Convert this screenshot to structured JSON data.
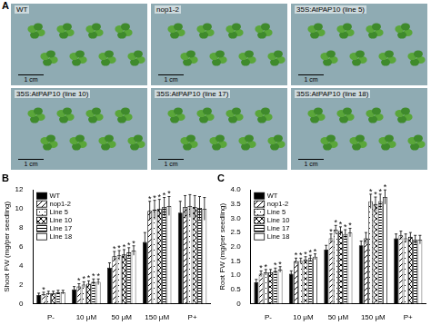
{
  "panel_a": {
    "label": "A",
    "images": [
      {
        "label": "WT",
        "scale_bar": "1 cm"
      },
      {
        "label": "nop1-2",
        "scale_bar": "1 cm"
      },
      {
        "label": "35S:AtPAP10 (line 5)",
        "scale_bar": "1 cm"
      },
      {
        "label": "35S:AtPAP10 (line 10)",
        "scale_bar": "1 cm"
      },
      {
        "label": "35S:AtPAP10 (line 17)",
        "scale_bar": "1 cm"
      },
      {
        "label": "35S:AtPAP10 (line 18)",
        "scale_bar": "1 cm"
      }
    ]
  },
  "chart_data": [
    {
      "type": "bar",
      "title": "B",
      "y_label": "Shoot FW (mg/per seedling)",
      "categories": [
        "P-",
        "10 μM",
        "50 μM",
        "150 μM",
        "P+"
      ],
      "ylim": [
        0,
        12
      ],
      "yticks": [
        0,
        2,
        4,
        6,
        8,
        10,
        12
      ],
      "grid": false,
      "legend": "upper left",
      "series": [
        {
          "name": "WT",
          "color": "#000000",
          "values": [
            0.9,
            1.5,
            3.8,
            6.5,
            9.6
          ],
          "errors": [
            0.2,
            0.3,
            0.5,
            1.0,
            1.2
          ],
          "annotations": [
            null,
            null,
            null,
            null,
            null
          ]
        },
        {
          "name": "nop1-2",
          "color": "#ffffff",
          "values": [
            1.0,
            1.8,
            5.0,
            9.8,
            10.2
          ],
          "errors": [
            0.2,
            0.3,
            0.5,
            1.0,
            1.2
          ],
          "annotations": [
            "*",
            "*",
            "*",
            "*",
            null
          ]
        },
        {
          "name": "Line 5",
          "color": "#ffffff",
          "values": [
            1.1,
            2.0,
            5.1,
            9.9,
            10.3
          ],
          "errors": [
            0.2,
            0.3,
            0.5,
            1.0,
            1.2
          ],
          "annotations": [
            null,
            "*",
            "*",
            "*",
            null
          ]
        },
        {
          "name": "Line 10",
          "color": "#ffffff",
          "values": [
            1.1,
            2.1,
            5.2,
            10.0,
            10.2
          ],
          "errors": [
            0.2,
            0.3,
            0.5,
            1.0,
            1.2
          ],
          "annotations": [
            null,
            "*",
            "*",
            "*",
            null
          ]
        },
        {
          "name": "Line 17",
          "color": "#ffffff",
          "values": [
            1.2,
            2.3,
            5.4,
            10.2,
            10.1
          ],
          "errors": [
            0.2,
            0.3,
            0.5,
            1.0,
            1.2
          ],
          "annotations": [
            null,
            "*",
            "*",
            "*",
            null
          ]
        },
        {
          "name": "Line 18",
          "color": "#ffffff",
          "values": [
            1.2,
            2.3,
            5.6,
            10.3,
            10.0
          ],
          "errors": [
            0.2,
            0.3,
            0.5,
            1.0,
            1.2
          ],
          "annotations": [
            null,
            "*",
            "*",
            "*",
            null
          ]
        }
      ]
    },
    {
      "type": "bar",
      "title": "C",
      "y_label": "Root FW (mg/per seedling)",
      "categories": [
        "P-",
        "10 μM",
        "50 μM",
        "150 μM",
        "P+"
      ],
      "ylim": [
        0,
        4
      ],
      "yticks": [
        0,
        {
          "value": 0.5,
          "label": "0.5"
        },
        {
          "value": 1,
          "label": "1.0"
        },
        {
          "value": 1.5,
          "label": "1.5"
        },
        {
          "value": 2,
          "label": "2.0"
        },
        {
          "value": 2.5,
          "label": "2.5"
        },
        {
          "value": 3,
          "label": "3.0"
        },
        {
          "value": 3.5,
          "label": "3.5"
        },
        {
          "value": 4,
          "label": "4.0"
        }
      ],
      "grid": false,
      "legend": "upper left",
      "series": [
        {
          "name": "WT",
          "color": "#000000",
          "values": [
            0.75,
            1.05,
            1.9,
            2.05,
            2.3
          ],
          "errors": [
            0.1,
            0.1,
            0.15,
            0.15,
            0.15
          ],
          "annotations": [
            null,
            null,
            null,
            null,
            null
          ]
        },
        {
          "name": "nop1-2",
          "color": "#ffffff",
          "values": [
            1.05,
            1.5,
            2.3,
            2.3,
            2.4
          ],
          "errors": [
            0.1,
            0.1,
            0.15,
            0.2,
            0.15
          ],
          "annotations": [
            "*",
            "*",
            "*",
            null,
            null
          ]
        },
        {
          "name": "Line 5",
          "color": "#ffffff",
          "values": [
            1.1,
            1.5,
            2.6,
            3.6,
            2.3
          ],
          "errors": [
            0.1,
            0.1,
            0.15,
            0.25,
            0.15
          ],
          "annotations": [
            "*",
            "*",
            "*",
            "*",
            null
          ]
        },
        {
          "name": "Line 10",
          "color": "#ffffff",
          "values": [
            1.1,
            1.55,
            2.55,
            3.5,
            2.35
          ],
          "errors": [
            0.1,
            0.1,
            0.15,
            0.25,
            0.15
          ],
          "annotations": [
            null,
            "*",
            "*",
            "*",
            null
          ]
        },
        {
          "name": "Line 17",
          "color": "#ffffff",
          "values": [
            1.15,
            1.6,
            2.45,
            3.6,
            2.25
          ],
          "errors": [
            0.1,
            0.1,
            0.15,
            0.25,
            0.15
          ],
          "annotations": [
            "*",
            "*",
            "*",
            "*",
            null
          ]
        },
        {
          "name": "Line 18",
          "color": "#ffffff",
          "values": [
            1.2,
            1.65,
            2.5,
            3.75,
            2.25
          ],
          "errors": [
            0.1,
            0.1,
            0.15,
            0.25,
            0.15
          ],
          "annotations": [
            "*",
            "*",
            "*",
            "*",
            null
          ]
        }
      ]
    }
  ]
}
